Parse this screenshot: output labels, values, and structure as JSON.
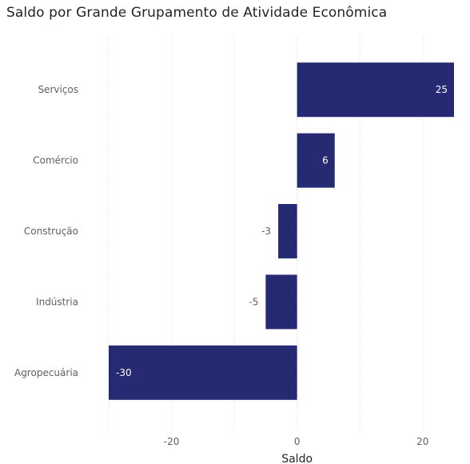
{
  "chart_data": {
    "type": "bar",
    "orientation": "horizontal",
    "title": "Saldo por Grande Grupamento de Atividade Econômica",
    "xlabel": "Saldo",
    "ylabel": "",
    "categories": [
      "Serviços",
      "Comércio",
      "Construção",
      "Indústria",
      "Agropecuária"
    ],
    "values": [
      25,
      6,
      -3,
      -5,
      -30
    ],
    "xlim": [
      -30,
      25
    ],
    "xticks": [
      -20,
      0,
      20
    ],
    "grid": "vertical-dotted",
    "bar_color": "#252a73",
    "data_labels": true
  }
}
